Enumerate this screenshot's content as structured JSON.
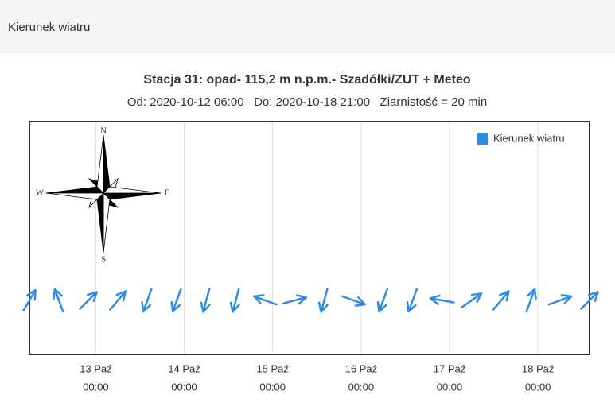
{
  "panel_title": "Kierunek wiatru",
  "chart_data": {
    "type": "vector",
    "title": "Stacja 31: opad- 115,2 m n.p.m.- Szadółki/ZUT + Meteo",
    "subtitle": "Od: 2020-10-12 06:00   Do: 2020-10-18 21:00   Ziarnistość = 20 min",
    "compass_labels": {
      "N": "N",
      "E": "E",
      "S": "S",
      "W": "W"
    },
    "x": [
      "2020-10-12 06:00",
      "2020-10-12 14:00",
      "2020-10-12 22:00",
      "2020-10-13 06:00",
      "2020-10-13 14:00",
      "2020-10-13 22:00",
      "2020-10-14 06:00",
      "2020-10-14 14:00",
      "2020-10-14 22:00",
      "2020-10-15 06:00",
      "2020-10-15 14:00",
      "2020-10-15 22:00",
      "2020-10-16 06:00",
      "2020-10-16 14:00",
      "2020-10-16 22:00",
      "2020-10-17 06:00",
      "2020-10-17 14:00",
      "2020-10-17 22:00",
      "2020-10-18 06:00",
      "2020-10-18 14:00"
    ],
    "series": [
      {
        "name": "Kierunek wiatru",
        "color": "#2f8ce6",
        "values": [
          210,
          160,
          225,
          220,
          20,
          20,
          15,
          15,
          110,
          255,
          15,
          290,
          20,
          20,
          100,
          235,
          220,
          200,
          250,
          225
        ]
      }
    ],
    "xlim": [
      "2020-10-12 06:00",
      "2020-10-18 14:00"
    ],
    "xticks": [
      {
        "value": "2020-10-13 00:00",
        "label": [
          "13 Paź",
          "00:00"
        ]
      },
      {
        "value": "2020-10-14 00:00",
        "label": [
          "14 Paź",
          "00:00"
        ]
      },
      {
        "value": "2020-10-15 00:00",
        "label": [
          "15 Paź",
          "00:00"
        ]
      },
      {
        "value": "2020-10-16 00:00",
        "label": [
          "16 Paź",
          "00:00"
        ]
      },
      {
        "value": "2020-10-17 00:00",
        "label": [
          "17 Paź",
          "00:00"
        ]
      },
      {
        "value": "2020-10-18 00:00",
        "label": [
          "18 Paź",
          "00:00"
        ]
      }
    ],
    "grid": true,
    "legend": "top-right"
  }
}
